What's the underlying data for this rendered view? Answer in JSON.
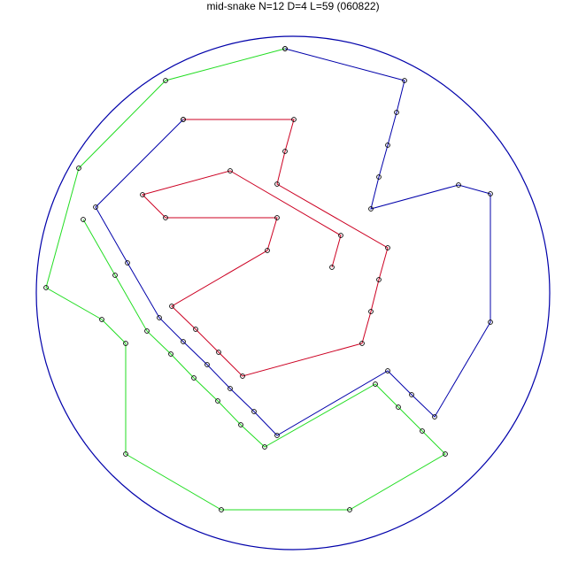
{
  "title": "mid-snake N=12 D=4 L=59 (060822)",
  "colors": {
    "boundary": "#0000aa",
    "segment_1": "#22dd22",
    "segment_2": "#0000aa",
    "segment_3": "#cc0022",
    "marker": "#000000"
  }
}
